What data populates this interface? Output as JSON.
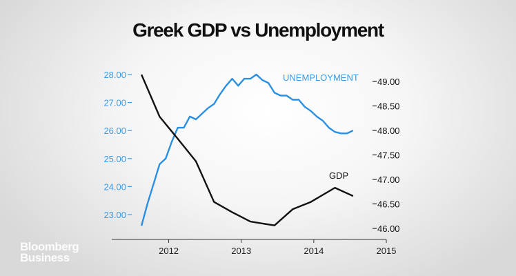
{
  "chart_data": {
    "type": "line",
    "title": "Greek GDP vs Unemployment",
    "x_ticks": [
      "2012",
      "2013",
      "2014",
      "2015"
    ],
    "xlim": [
      "2011-07",
      "2015-01"
    ],
    "left_axis": {
      "ticks": [
        "23.00",
        "24.00",
        "25.00",
        "26.00",
        "27.00",
        "28.00"
      ],
      "ylim": [
        23,
        28
      ],
      "color": "#3b9be6"
    },
    "right_axis": {
      "ticks": [
        "46.00",
        "46.50",
        "47.00",
        "47.50",
        "48.00",
        "48.50",
        "49.00"
      ],
      "ylim": [
        46,
        49
      ],
      "color": "#111111"
    },
    "grid": false,
    "series": [
      {
        "name": "UNEMPLOYMENT",
        "axis": "left",
        "color": "#2a8fe2",
        "x": [
          "2011-08",
          "2011-09",
          "2011-10",
          "2011-11",
          "2011-12",
          "2012-01",
          "2012-02",
          "2012-03",
          "2012-04",
          "2012-05",
          "2012-06",
          "2012-07",
          "2012-08",
          "2012-09",
          "2012-10",
          "2012-11",
          "2012-12",
          "2013-01",
          "2013-02",
          "2013-03",
          "2013-04",
          "2013-05",
          "2013-06",
          "2013-07",
          "2013-08",
          "2013-09",
          "2013-10",
          "2013-11",
          "2013-12",
          "2014-01",
          "2014-02",
          "2014-03",
          "2014-04",
          "2014-05",
          "2014-06",
          "2014-07"
        ],
        "values": [
          22.6,
          23.4,
          24.1,
          24.8,
          25.0,
          25.6,
          26.1,
          26.1,
          26.5,
          26.4,
          26.6,
          26.8,
          26.95,
          27.3,
          27.6,
          27.85,
          27.6,
          27.85,
          27.85,
          28.0,
          27.8,
          27.7,
          27.35,
          27.25,
          27.25,
          27.1,
          27.1,
          26.85,
          26.7,
          26.5,
          26.35,
          26.1,
          25.95,
          25.9,
          25.9,
          26.0
        ]
      },
      {
        "name": "GDP",
        "axis": "right",
        "color": "#111111",
        "x": [
          "2011-08",
          "2011-11",
          "2012-02",
          "2012-05",
          "2012-08",
          "2012-11",
          "2013-02",
          "2013-06",
          "2013-09",
          "2013-12",
          "2014-04",
          "2014-07"
        ],
        "values": [
          49.14,
          48.28,
          47.83,
          47.37,
          46.54,
          46.33,
          46.14,
          46.06,
          46.39,
          46.54,
          46.83,
          46.66
        ]
      }
    ]
  },
  "logo": {
    "line1": "Bloomberg",
    "line2": "Business"
  }
}
